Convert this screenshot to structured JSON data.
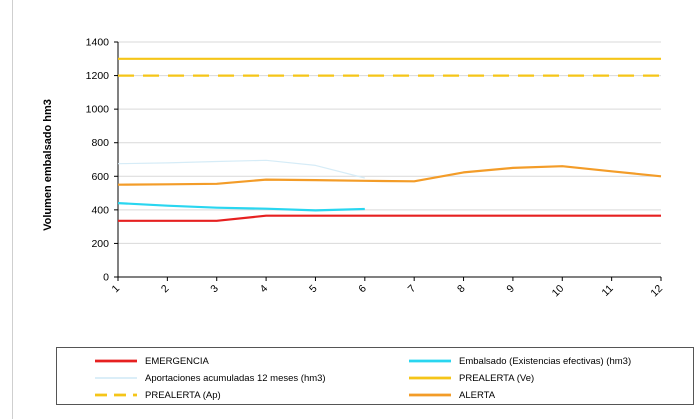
{
  "chart_data": {
    "type": "line",
    "title": "",
    "xlabel": "",
    "ylabel": "Volumen embalsado hm3",
    "ylim": [
      0,
      1400
    ],
    "yticks": [
      0,
      200,
      400,
      600,
      800,
      1000,
      1200,
      1400
    ],
    "x": [
      1,
      2,
      3,
      4,
      5,
      6,
      7,
      8,
      9,
      10,
      11,
      12
    ],
    "grid": "horizontal",
    "legend_placement": "bottom",
    "series": [
      {
        "name": "EMERGENCIA",
        "color": "#e62020",
        "dash": false,
        "width": 2.2,
        "values": [
          335,
          335,
          335,
          365,
          365,
          365,
          365,
          365,
          365,
          365,
          365,
          365
        ]
      },
      {
        "name": "Embalsado (Existencias efectivas) (hm3)",
        "color": "#29d6f0",
        "dash": false,
        "width": 2.2,
        "values": [
          440,
          425,
          413,
          407,
          397,
          405,
          null,
          null,
          null,
          null,
          null,
          null
        ]
      },
      {
        "name": "Aportaciones acumuladas 12 meses (hm3)",
        "color": "#d6ecf7",
        "dash": false,
        "width": 1.2,
        "values": [
          675,
          680,
          688,
          695,
          665,
          590,
          null,
          null,
          null,
          null,
          null,
          null
        ]
      },
      {
        "name": "PREALERTA (Ve)",
        "color": "#f5c518",
        "dash": false,
        "width": 2.2,
        "values": [
          1300,
          1300,
          1300,
          1300,
          1300,
          1300,
          1300,
          1300,
          1300,
          1300,
          1300,
          1300
        ]
      },
      {
        "name": "PREALERTA (Ap)",
        "color": "#f5c518",
        "dash": true,
        "width": 2.2,
        "values": [
          1200,
          1200,
          1200,
          1200,
          1200,
          1200,
          1200,
          1200,
          1200,
          1200,
          1200,
          1200
        ]
      },
      {
        "name": "ALERTA",
        "color": "#f39c28",
        "dash": false,
        "width": 2.2,
        "values": [
          550,
          552,
          555,
          580,
          577,
          573,
          570,
          623,
          650,
          660,
          630,
          600
        ]
      }
    ]
  }
}
